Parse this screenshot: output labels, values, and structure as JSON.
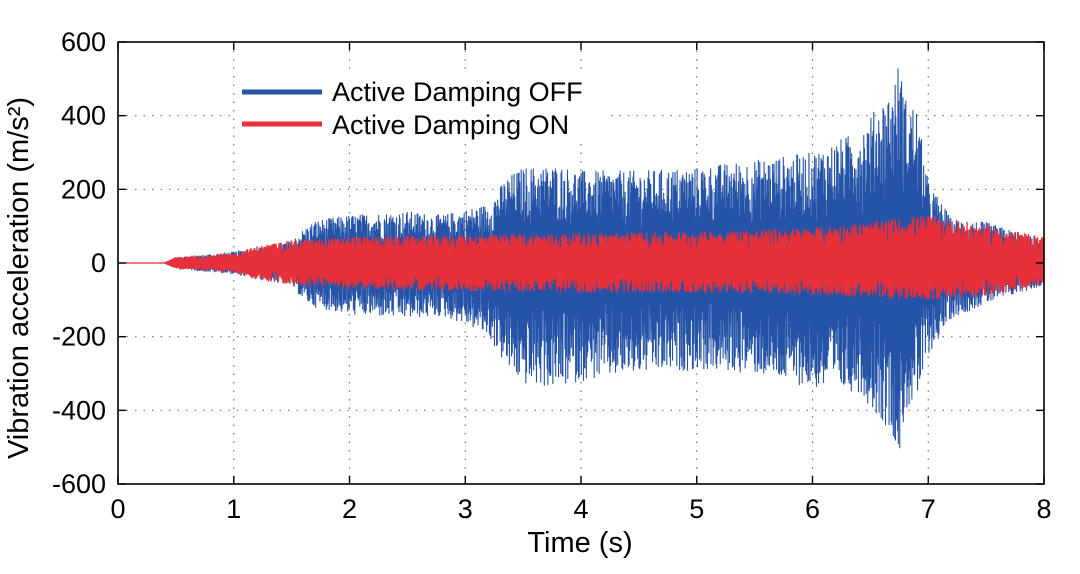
{
  "chart_data": {
    "type": "line",
    "xlabel": "Time (s)",
    "ylabel": "Vibration acceleration (m/s²)",
    "xlim": [
      0,
      8
    ],
    "ylim": [
      -600,
      600
    ],
    "xticks": [
      0,
      1,
      2,
      3,
      4,
      5,
      6,
      7,
      8
    ],
    "yticks": [
      600,
      400,
      200,
      0,
      -200,
      -400,
      -600
    ],
    "grid": true,
    "legend_position": "top-left",
    "series": [
      {
        "name": "Active Damping OFF",
        "color": "#2553a8",
        "envelope": {
          "x": [
            0,
            0.4,
            0.5,
            1.0,
            1.5,
            1.6,
            1.7,
            2.0,
            2.5,
            2.8,
            3.0,
            3.2,
            3.35,
            3.5,
            3.8,
            4.0,
            4.5,
            5.0,
            5.5,
            6.0,
            6.4,
            6.7,
            6.75,
            6.8,
            6.9,
            7.0,
            7.2,
            7.5,
            7.8,
            8.0
          ],
          "upper": [
            0,
            0,
            15,
            30,
            60,
            90,
            115,
            130,
            140,
            130,
            145,
            160,
            230,
            260,
            265,
            250,
            250,
            260,
            280,
            300,
            360,
            480,
            555,
            450,
            420,
            220,
            120,
            110,
            80,
            60
          ],
          "lower": [
            0,
            0,
            -15,
            -30,
            -60,
            -100,
            -120,
            -140,
            -150,
            -145,
            -165,
            -200,
            -280,
            -330,
            -340,
            -320,
            -300,
            -290,
            -300,
            -340,
            -350,
            -470,
            -540,
            -400,
            -380,
            -250,
            -150,
            -110,
            -80,
            -60
          ]
        }
      },
      {
        "name": "Active Damping ON",
        "color": "#e8303a",
        "envelope": {
          "x": [
            0,
            0.4,
            0.5,
            1.0,
            1.2,
            1.5,
            2.0,
            3.0,
            4.0,
            5.0,
            6.0,
            6.5,
            7.0,
            7.5,
            8.0
          ],
          "upper": [
            0,
            0,
            15,
            25,
            45,
            60,
            70,
            75,
            80,
            85,
            95,
            110,
            130,
            100,
            70
          ],
          "lower": [
            0,
            0,
            -15,
            -25,
            -45,
            -60,
            -70,
            -75,
            -80,
            -80,
            -85,
            -95,
            -100,
            -90,
            -60
          ]
        }
      }
    ]
  }
}
